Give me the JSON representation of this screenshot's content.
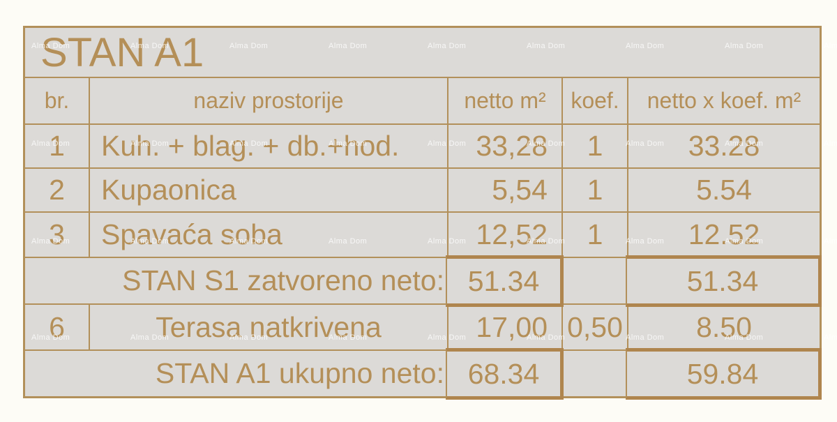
{
  "page": {
    "title": "STAN A1"
  },
  "watermark": {
    "text": "Alma Dom"
  },
  "colors": {
    "accent": "#b48f58",
    "cellbg": "#dcdad7",
    "border": "#b2905a",
    "boxborder": "#af854e",
    "pagebg": "#fdfcf6"
  },
  "table": {
    "headers": {
      "br": "br.",
      "naziv": "naziv prostorije",
      "netto": "netto m²",
      "koef": "koef.",
      "netto_koef": "netto x koef. m²"
    },
    "rows": [
      {
        "br": "1",
        "naziv": "Kuh. + blag. + db.+hod.",
        "netto": "33,28",
        "koef": "1",
        "netto_koef": "33.28"
      },
      {
        "br": "2",
        "naziv": "Kupaonica",
        "netto": "5,54",
        "koef": "1",
        "netto_koef": "5.54"
      },
      {
        "br": "3",
        "naziv": "Spavaća soba",
        "netto": "12,52",
        "koef": "1",
        "netto_koef": "12.52"
      }
    ],
    "subtotal": {
      "label": "STAN S1 zatvoreno neto:",
      "netto": "51.34",
      "koef": "",
      "netto_koef": "51.34"
    },
    "terrace": {
      "br": "6",
      "naziv": "Terasa natkrivena",
      "netto": "17,00",
      "koef": "0,50",
      "netto_koef": "8.50"
    },
    "total": {
      "label": "STAN A1 ukupno neto:",
      "netto": "68.34",
      "koef": "",
      "netto_koef": "59.84"
    }
  }
}
